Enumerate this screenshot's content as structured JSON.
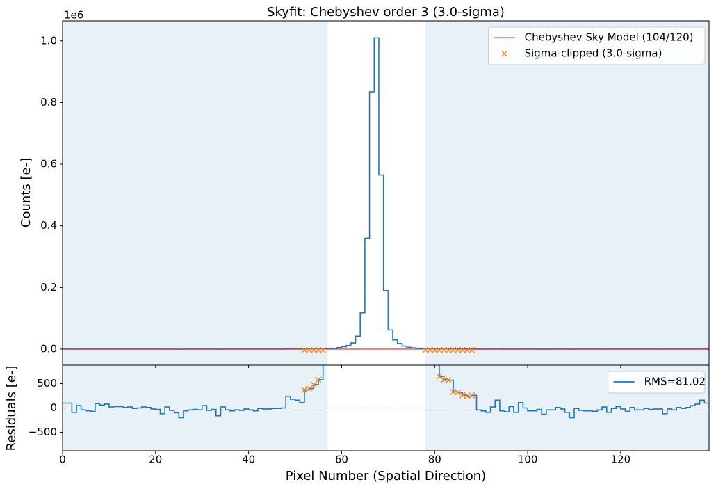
{
  "chart_data": [
    {
      "type": "step",
      "title": "Skyfit: Chebyshev order 3 (3.0-sigma)",
      "y_label": "Counts [e-]",
      "y_offset_label": "1e6",
      "xlim": [
        0,
        139
      ],
      "ylim": [
        -52000,
        1065000
      ],
      "xticks": [
        0,
        20,
        40,
        60,
        80,
        100,
        120
      ],
      "yticks": [
        {
          "value": 0,
          "label": "0.0"
        },
        {
          "value": 200000,
          "label": "0.2"
        },
        {
          "value": 400000,
          "label": "0.4"
        },
        {
          "value": 600000,
          "label": "0.6"
        },
        {
          "value": 800000,
          "label": "0.8"
        },
        {
          "value": 1000000,
          "label": "1.0"
        }
      ],
      "sky_regions": [
        [
          0,
          57
        ],
        [
          78,
          139
        ]
      ],
      "sky_color": "#1f77b4",
      "legend": "upper right",
      "x": [
        0,
        1,
        2,
        3,
        4,
        5,
        6,
        7,
        8,
        9,
        10,
        11,
        12,
        13,
        14,
        15,
        16,
        17,
        18,
        19,
        20,
        21,
        22,
        23,
        24,
        25,
        26,
        27,
        28,
        29,
        30,
        31,
        32,
        33,
        34,
        35,
        36,
        37,
        38,
        39,
        40,
        41,
        42,
        43,
        44,
        45,
        46,
        47,
        48,
        49,
        50,
        51,
        52,
        53,
        54,
        55,
        56,
        57,
        58,
        59,
        60,
        61,
        62,
        63,
        64,
        65,
        66,
        67,
        68,
        69,
        70,
        71,
        72,
        73,
        74,
        75,
        76,
        77,
        78,
        79,
        80,
        81,
        82,
        83,
        84,
        85,
        86,
        87,
        88,
        89,
        90,
        91,
        92,
        93,
        94,
        95,
        96,
        97,
        98,
        99,
        100,
        101,
        102,
        103,
        104,
        105,
        106,
        107,
        108,
        109,
        110,
        111,
        112,
        113,
        114,
        115,
        116,
        117,
        118,
        119,
        120,
        121,
        122,
        123,
        124,
        125,
        126,
        127,
        128,
        129,
        130,
        131,
        132,
        133,
        134,
        135,
        136,
        137,
        138
      ],
      "series": [
        {
          "color": "#1f77b4",
          "style": "step",
          "values": [
            100,
            100,
            -90,
            50,
            -40,
            -60,
            -70,
            90,
            60,
            80,
            20,
            30,
            30,
            10,
            20,
            -10,
            0,
            20,
            10,
            -20,
            -30,
            -120,
            20,
            -50,
            -100,
            -200,
            -60,
            -40,
            -30,
            -40,
            50,
            -50,
            -30,
            -160,
            20,
            -40,
            -60,
            -40,
            -50,
            -20,
            -40,
            -60,
            -10,
            -20,
            -20,
            -10,
            -10,
            0,
            240,
            180,
            160,
            110,
            370,
            400,
            480,
            580,
            1000,
            2000,
            3000,
            5000,
            8000,
            12000,
            20000,
            42000,
            118000,
            360000,
            835000,
            1010000,
            565000,
            190000,
            62000,
            30000,
            18000,
            10000,
            6000,
            4000,
            3000,
            2000,
            1500,
            1200,
            1000,
            650,
            580,
            570,
            330,
            320,
            260,
            240,
            260,
            -40,
            -60,
            -90,
            20,
            160,
            -60,
            -80,
            30,
            -90,
            110,
            0,
            -60,
            -60,
            -30,
            -130,
            -40,
            -40,
            10,
            -20,
            -90,
            -200,
            -10,
            -50,
            -60,
            -60,
            -70,
            -40,
            20,
            -90,
            -10,
            30,
            -20,
            -70,
            10,
            -40,
            -40,
            -10,
            -30,
            -20,
            -20,
            -120,
            -20,
            -40,
            10,
            -10,
            10,
            50,
            80,
            160,
            100
          ]
        },
        {
          "name": "Chebyshev Sky Model (104/120)",
          "color": "#d62728",
          "style": "line",
          "x": [
            0,
            139
          ],
          "values": [
            0,
            0
          ]
        },
        {
          "name": "Sigma-clipped (3.0-sigma)",
          "color": "#ff7f0e",
          "style": "marker",
          "x": [
            52,
            53,
            54,
            55,
            56,
            78,
            79,
            80,
            81,
            82,
            83,
            84,
            85,
            86,
            87,
            88
          ],
          "values": [
            -3000,
            -3000,
            -3000,
            -3000,
            -3000,
            -3000,
            -3000,
            -3000,
            -3000,
            -3000,
            -3000,
            -3000,
            -3000,
            -3000,
            -3000,
            -3000
          ]
        }
      ]
    },
    {
      "type": "step",
      "y_label": "Residuals [e-]",
      "x_label": "Pixel Number (Spatial Direction)",
      "xlim": [
        0,
        139
      ],
      "ylim": [
        -880,
        880
      ],
      "xticks": [
        0,
        20,
        40,
        60,
        80,
        100,
        120
      ],
      "yticks": [
        {
          "value": -500,
          "label": "−500"
        },
        0,
        500
      ],
      "sky_regions": [
        [
          0,
          57
        ],
        [
          78,
          139
        ]
      ],
      "sky_color": "#1f77b4",
      "hline": 0,
      "legend": "upper right",
      "x": [
        0,
        1,
        2,
        3,
        4,
        5,
        6,
        7,
        8,
        9,
        10,
        11,
        12,
        13,
        14,
        15,
        16,
        17,
        18,
        19,
        20,
        21,
        22,
        23,
        24,
        25,
        26,
        27,
        28,
        29,
        30,
        31,
        32,
        33,
        34,
        35,
        36,
        37,
        38,
        39,
        40,
        41,
        42,
        43,
        44,
        45,
        46,
        47,
        48,
        49,
        50,
        51,
        52,
        53,
        54,
        55,
        56,
        57,
        58,
        59,
        60,
        61,
        62,
        63,
        64,
        65,
        66,
        67,
        68,
        69,
        70,
        71,
        72,
        73,
        74,
        75,
        76,
        77,
        78,
        79,
        80,
        81,
        82,
        83,
        84,
        85,
        86,
        87,
        88,
        89,
        90,
        91,
        92,
        93,
        94,
        95,
        96,
        97,
        98,
        99,
        100,
        101,
        102,
        103,
        104,
        105,
        106,
        107,
        108,
        109,
        110,
        111,
        112,
        113,
        114,
        115,
        116,
        117,
        118,
        119,
        120,
        121,
        122,
        123,
        124,
        125,
        126,
        127,
        128,
        129,
        130,
        131,
        132,
        133,
        134,
        135,
        136,
        137,
        138
      ],
      "series": [
        {
          "name": "RMS=81.02",
          "color": "#1f77b4",
          "style": "step",
          "values": [
            100,
            100,
            -90,
            50,
            -40,
            -60,
            -70,
            90,
            60,
            80,
            20,
            30,
            30,
            10,
            20,
            -10,
            0,
            20,
            10,
            -20,
            -30,
            -120,
            20,
            -50,
            -100,
            -200,
            -60,
            -40,
            -30,
            -40,
            50,
            -50,
            -30,
            -160,
            20,
            -40,
            -60,
            -40,
            -50,
            -20,
            -40,
            -60,
            -10,
            -20,
            -20,
            -10,
            -10,
            0,
            240,
            180,
            160,
            110,
            370,
            400,
            480,
            580,
            1000,
            null,
            null,
            null,
            null,
            null,
            null,
            null,
            null,
            null,
            null,
            null,
            null,
            null,
            null,
            null,
            null,
            null,
            null,
            null,
            null,
            null,
            null,
            null,
            1000,
            650,
            580,
            570,
            330,
            320,
            260,
            240,
            260,
            -40,
            -60,
            -90,
            20,
            160,
            -60,
            -80,
            30,
            -90,
            110,
            0,
            -60,
            -60,
            -30,
            -130,
            -40,
            -40,
            10,
            -20,
            -90,
            -200,
            -10,
            -50,
            -60,
            -60,
            -70,
            -40,
            20,
            -90,
            -10,
            30,
            -20,
            -70,
            10,
            -40,
            -40,
            -10,
            -30,
            -20,
            -20,
            -120,
            -20,
            -40,
            10,
            -10,
            10,
            50,
            80,
            160,
            100
          ]
        },
        {
          "color": "#ff7f0e",
          "style": "marker",
          "x": [
            52,
            53,
            54,
            55,
            81,
            82,
            83,
            84,
            85,
            86,
            87,
            88
          ],
          "values": [
            370,
            400,
            480,
            580,
            650,
            580,
            570,
            330,
            320,
            260,
            240,
            260
          ]
        }
      ]
    }
  ]
}
